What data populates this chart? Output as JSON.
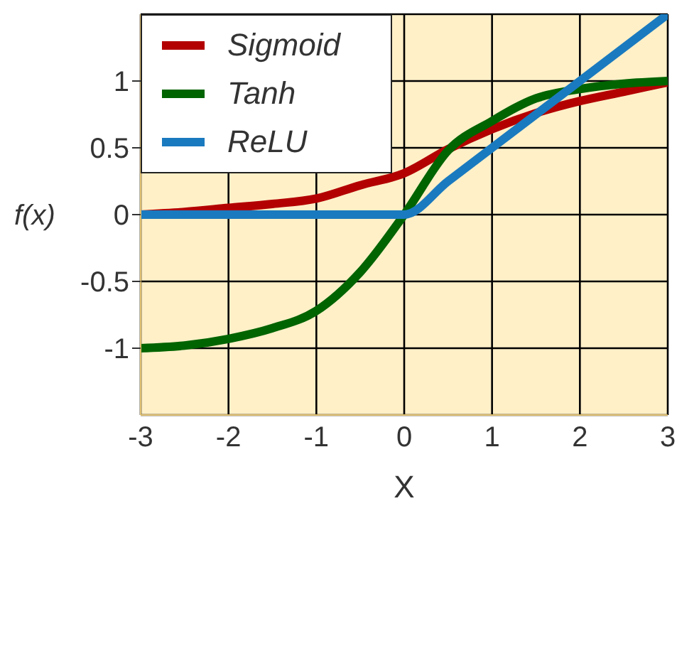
{
  "chart_data": {
    "type": "line",
    "xlabel": "X",
    "ylabel": "f(x)",
    "x": [
      -3,
      -2.5,
      -2,
      -1.5,
      -1,
      -0.5,
      0,
      0.5,
      1,
      1.5,
      2,
      2.5,
      3
    ],
    "series": [
      {
        "name": "Sigmoid",
        "color": "#b30000",
        "values": [
          0.0,
          0.02,
          0.05,
          0.08,
          0.12,
          0.22,
          0.31,
          0.49,
          0.64,
          0.76,
          0.85,
          0.92,
          0.99
        ]
      },
      {
        "name": "Tanh",
        "color": "#006400",
        "values": [
          -1.0,
          -0.98,
          -0.93,
          -0.85,
          -0.72,
          -0.43,
          0.0,
          0.48,
          0.7,
          0.87,
          0.94,
          0.98,
          1.0
        ]
      },
      {
        "name": "ReLU",
        "color": "#1a7abf",
        "values": [
          0,
          0,
          0,
          0,
          0,
          0,
          0,
          0.25,
          0.5,
          0.75,
          1.0,
          1.25,
          1.5
        ]
      }
    ],
    "xlim": [
      -3,
      3
    ],
    "xticks": [
      -3,
      -2,
      -1,
      0,
      1,
      2,
      3
    ],
    "ylim": [
      -1.5,
      1.5
    ],
    "yticks": [
      -1,
      -0.5,
      0,
      0.5,
      1
    ],
    "grid": true,
    "legend": "top left",
    "marker": "none",
    "line_style": "solid"
  }
}
